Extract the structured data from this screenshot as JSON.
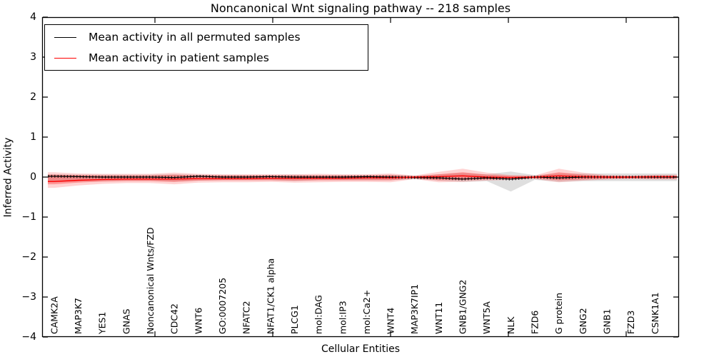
{
  "chart_data": {
    "type": "line",
    "title": "Noncanonical Wnt signaling pathway -- 218 samples",
    "xlabel": "Cellular Entities",
    "ylabel": "Inferred Activity",
    "ylim": [
      -4,
      4
    ],
    "yticks": [
      4,
      3,
      2,
      1,
      0,
      -1,
      -2,
      -3,
      -4
    ],
    "grid": false,
    "legend_position": "upper left",
    "categories": [
      "CAMK2A",
      "MAP3K7",
      "YES1",
      "GNAS",
      "Noncanonical Wnts/FZD",
      "CDC42",
      "WNT6",
      "GO:0007205",
      "NFATC2",
      "NFAT1/CK1 alpha",
      "PLCG1",
      "mol:DAG",
      "mol:IP3",
      "mol:Ca2+",
      "WNT4",
      "MAP3K7IP1",
      "WNT11",
      "GNB1/GNG2",
      "WNT5A",
      "NLK",
      "FZD6",
      "G protein",
      "GNG2",
      "GNB1",
      "FZD3",
      "CSNK1A1"
    ],
    "series": [
      {
        "name": "Mean activity in all permuted samples",
        "color": "#000000",
        "style": "solid-with-tick-markers",
        "values": [
          0.02,
          0.01,
          0.0,
          0.0,
          0.0,
          -0.01,
          0.02,
          0.0,
          0.0,
          0.01,
          0.0,
          0.0,
          0.0,
          0.01,
          0.0,
          -0.01,
          -0.02,
          -0.05,
          -0.02,
          -0.05,
          0.0,
          -0.02,
          0.0,
          0.0,
          0.0,
          0.0
        ]
      },
      {
        "name": "Mean activity in patient samples",
        "color": "#ff0000",
        "style": "solid",
        "values": [
          -0.11,
          -0.08,
          -0.06,
          -0.05,
          -0.05,
          -0.05,
          -0.04,
          -0.04,
          -0.04,
          -0.03,
          -0.03,
          -0.03,
          -0.03,
          -0.02,
          -0.02,
          0.0,
          0.01,
          0.03,
          0.0,
          -0.01,
          0.0,
          0.03,
          0.01,
          0.0,
          0.0,
          0.01
        ]
      }
    ],
    "bands": [
      {
        "name": "permuted-samples-range",
        "color": "rgba(150,150,150,0.30)",
        "upper": [
          0.07,
          0.06,
          0.06,
          0.06,
          0.06,
          0.07,
          0.06,
          0.05,
          0.05,
          0.05,
          0.06,
          0.05,
          0.05,
          0.05,
          0.06,
          0.03,
          0.07,
          0.1,
          0.07,
          0.14,
          0.05,
          0.09,
          0.09,
          0.09,
          0.09,
          0.09
        ],
        "lower": [
          -0.13,
          -0.11,
          -0.1,
          -0.09,
          -0.09,
          -0.11,
          -0.09,
          -0.08,
          -0.08,
          -0.08,
          -0.1,
          -0.08,
          -0.08,
          -0.08,
          -0.08,
          -0.05,
          -0.09,
          -0.12,
          -0.1,
          -0.36,
          -0.07,
          -0.12,
          -0.1,
          -0.1,
          -0.1,
          -0.1
        ]
      },
      {
        "name": "patient-samples-range-outer",
        "color": "rgba(255,40,40,0.20)",
        "upper": [
          0.12,
          0.09,
          0.08,
          0.08,
          0.08,
          0.11,
          0.08,
          0.07,
          0.07,
          0.07,
          0.07,
          0.08,
          0.07,
          0.07,
          0.09,
          0.04,
          0.13,
          0.21,
          0.11,
          0.05,
          0.04,
          0.21,
          0.11,
          0.05,
          0.04,
          0.06
        ],
        "lower": [
          -0.27,
          -0.21,
          -0.17,
          -0.15,
          -0.15,
          -0.18,
          -0.14,
          -0.13,
          -0.13,
          -0.12,
          -0.14,
          -0.13,
          -0.12,
          -0.12,
          -0.13,
          -0.05,
          -0.13,
          -0.12,
          -0.09,
          -0.07,
          -0.05,
          -0.13,
          -0.09,
          -0.06,
          -0.05,
          -0.06
        ],
        "name_note": "wider light red band"
      },
      {
        "name": "patient-samples-range-inner",
        "color": "rgba(255,40,40,0.35)",
        "upper": [
          0.06,
          0.05,
          0.04,
          0.04,
          0.04,
          0.06,
          0.04,
          0.04,
          0.04,
          0.04,
          0.04,
          0.04,
          0.04,
          0.04,
          0.05,
          0.02,
          0.07,
          0.12,
          0.06,
          0.03,
          0.02,
          0.12,
          0.06,
          0.03,
          0.02,
          0.03
        ],
        "lower": [
          -0.18,
          -0.14,
          -0.11,
          -0.1,
          -0.1,
          -0.12,
          -0.09,
          -0.08,
          -0.08,
          -0.08,
          -0.09,
          -0.08,
          -0.08,
          -0.08,
          -0.08,
          -0.03,
          -0.08,
          -0.07,
          -0.06,
          -0.04,
          -0.03,
          -0.08,
          -0.06,
          -0.04,
          -0.03,
          -0.04
        ]
      }
    ]
  },
  "legend": {
    "items": [
      {
        "label": "Mean activity in all permuted samples",
        "color": "#000000"
      },
      {
        "label": "Mean activity in patient samples",
        "color": "#ff0000"
      }
    ]
  },
  "colors": {
    "axis": "#000000",
    "background": "#ffffff",
    "patient_line": "#ff0000",
    "permuted_line": "#000000"
  }
}
